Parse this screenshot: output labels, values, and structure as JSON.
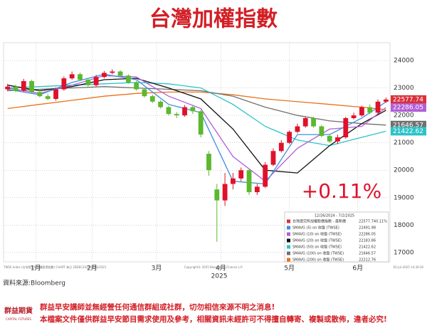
{
  "chart_data": {
    "type": "candlestick",
    "title": "台灣加權指數",
    "change_label": "+0.11%",
    "x_axis_label": "2025",
    "source": "資料來源:Bloomberg",
    "footer_left": "TWSE Index (台灣證交所加權股價指數) CHART 每日 26DEC2024-02JUL2025",
    "footer_mid": "Copyright© 2025 Bloomberg Finance L.P.",
    "footer_right": "02-Jul-2025 14:30:30",
    "logo": "群益期貨",
    "logo_sub": "CAPITAL FUTURES",
    "disclaimer": [
      "群益早安講師並無經營任何通信群組或社群，切勿相信來源不明之消息!",
      "本檔案文件僅供群益早安節目需求使用及參考，相關資訊未經許可不得擅自轉寄、複製或散佈，違者必究!"
    ],
    "legend_title": "12/26/2024 - 7/2/2025",
    "price_name": "台灣證交所加權股價指數 - 最新價",
    "price_change": "0.11%",
    "up_color": "#e0112b",
    "down_color": "#5cb82e",
    "price_color": "#d9303a",
    "x": [
      0,
      1,
      2,
      3,
      4,
      5,
      6,
      7,
      8,
      9,
      10,
      11,
      12,
      13,
      14,
      15,
      16,
      17,
      18,
      19,
      20,
      21,
      22,
      23,
      24,
      25,
      26,
      27,
      28,
      29,
      30,
      31,
      32,
      33,
      34,
      35,
      36,
      37,
      38,
      39,
      40,
      41,
      42,
      43,
      44,
      45,
      46,
      47
    ],
    "open": [
      22950,
      23050,
      22900,
      23250,
      22850,
      22700,
      22600,
      22950,
      23350,
      23500,
      23300,
      23100,
      23400,
      23550,
      23600,
      23450,
      23200,
      22950,
      22700,
      22500,
      22300,
      22050,
      22000,
      22300,
      22150,
      20600,
      19300,
      18900,
      19500,
      19700,
      20000,
      19200,
      19400,
      20200,
      20700,
      21000,
      21400,
      21600,
      21900,
      21600,
      21250,
      21050,
      21200,
      21900,
      22000,
      22300,
      22100,
      22500
    ],
    "high": [
      23150,
      23120,
      23330,
      23300,
      22950,
      22780,
      23020,
      23420,
      23600,
      23560,
      23360,
      23480,
      23620,
      23680,
      23650,
      23500,
      23260,
      23000,
      22760,
      22560,
      22350,
      22120,
      22380,
      22350,
      22200,
      20700,
      19500,
      19900,
      19900,
      20100,
      20050,
      19500,
      20300,
      20800,
      21100,
      21450,
      21700,
      21950,
      21950,
      21650,
      21300,
      21300,
      21950,
      22100,
      22350,
      22400,
      22580,
      22650
    ],
    "low": [
      22880,
      22850,
      22850,
      22780,
      22650,
      22550,
      22540,
      22900,
      23300,
      23250,
      23050,
      23050,
      23350,
      23500,
      23400,
      23150,
      22900,
      22650,
      22450,
      22250,
      22000,
      21900,
      21950,
      22050,
      21200,
      19800,
      17391,
      18700,
      19300,
      19600,
      19100,
      19100,
      19350,
      20150,
      20650,
      20950,
      21350,
      21550,
      21550,
      21200,
      21000,
      20950,
      21150,
      21850,
      21950,
      22050,
      22050,
      22450
    ],
    "close": [
      23050,
      22900,
      23250,
      22850,
      22700,
      22600,
      22950,
      23350,
      23500,
      23300,
      23100,
      23400,
      23550,
      23600,
      23450,
      23200,
      22950,
      22700,
      22500,
      22300,
      22050,
      22000,
      22300,
      22150,
      21300,
      20000,
      18900,
      19500,
      19700,
      20000,
      19200,
      19400,
      20200,
      20700,
      21000,
      21400,
      21600,
      21900,
      21600,
      21250,
      21050,
      21200,
      21900,
      22000,
      22300,
      22100,
      22500,
      22577.74
    ],
    "series": [
      {
        "name": "SMAVG (5) on 收盤 (TWSE)",
        "color": "#3d8fe0",
        "x": [
          0,
          4,
          8,
          12,
          16,
          20,
          24,
          28,
          32,
          36,
          40,
          44,
          47
        ],
        "values": [
          22950,
          22750,
          23200,
          23500,
          23300,
          22400,
          22100,
          19600,
          19500,
          21300,
          21300,
          21900,
          22491.98
        ]
      },
      {
        "name": "SMAVG (10) on 收盤 (TWSE)",
        "color": "#b25fd6",
        "x": [
          0,
          4,
          8,
          12,
          16,
          20,
          24,
          28,
          32,
          36,
          40,
          44,
          47
        ],
        "values": [
          23000,
          22800,
          23100,
          23450,
          23400,
          22700,
          22250,
          20500,
          19600,
          20800,
          21500,
          21600,
          22286.05
        ]
      },
      {
        "name": "SMAVG (20) on 收盤 (TWSE)",
        "color": "#111111",
        "x": [
          0,
          4,
          8,
          12,
          16,
          20,
          24,
          28,
          32,
          36,
          40,
          44,
          47
        ],
        "values": [
          23100,
          22900,
          23050,
          23300,
          23350,
          23000,
          22600,
          21500,
          20000,
          19900,
          20900,
          21700,
          22183.86
        ]
      },
      {
        "name": "SMAVG (50) on 收盤 (TWSE)",
        "color": "#2bc3c8",
        "x": [
          0,
          4,
          8,
          12,
          16,
          20,
          24,
          28,
          32,
          36,
          40,
          44,
          47
        ],
        "values": [
          23000,
          23050,
          23100,
          23150,
          23200,
          23150,
          23000,
          22400,
          21600,
          21100,
          20900,
          21200,
          21422.62
        ]
      },
      {
        "name": "SMAVG (100) on 收盤 (TWSE)",
        "color": "#707070",
        "x": [
          0,
          4,
          8,
          12,
          16,
          20,
          24,
          28,
          32,
          36,
          40,
          44,
          47
        ],
        "values": [
          22900,
          22950,
          23000,
          23050,
          23000,
          22950,
          22900,
          22700,
          22300,
          22000,
          21800,
          21700,
          21646.57
        ]
      },
      {
        "name": "SMAVG (200) on 收盤 (TWSE)",
        "color": "#e8731a",
        "x": [
          0,
          4,
          8,
          12,
          16,
          20,
          24,
          28,
          32,
          36,
          40,
          44,
          47
        ],
        "values": [
          22250,
          22400,
          22550,
          22700,
          22800,
          22850,
          22850,
          22750,
          22600,
          22500,
          22400,
          22300,
          22212.76
        ]
      }
    ],
    "ylim": [
      16660,
      24650
    ],
    "yticks": [
      17000,
      18000,
      19000,
      20000,
      21000,
      22000,
      23000,
      24000
    ],
    "xlim": [
      -0.5,
      47.5
    ],
    "xticks": [
      {
        "value": 3.5,
        "label": "1月"
      },
      {
        "value": 10.5,
        "label": "2月"
      },
      {
        "value": 18.5,
        "label": "3月"
      },
      {
        "value": 26.5,
        "label": "4月"
      },
      {
        "value": 35,
        "label": "5月"
      },
      {
        "value": 43.5,
        "label": "6月"
      }
    ],
    "tags": [
      {
        "series": "close",
        "index": 47
      },
      {
        "series": 1
      },
      {
        "series": 4
      },
      {
        "series": 3
      }
    ],
    "grid": true
  }
}
